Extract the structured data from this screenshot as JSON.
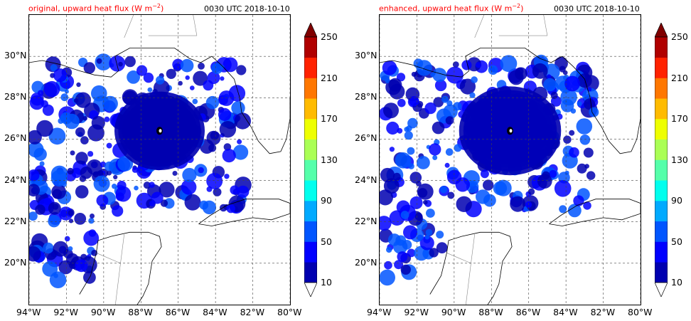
{
  "panels": [
    {
      "id": "left",
      "title": "original, upward heat flux (W m",
      "title_sup": "−2",
      "title_close": ")",
      "time": "0030 UTC 2018-10-10",
      "seed": 7
    },
    {
      "id": "right",
      "title": "enhanced, upward heat flux (W m",
      "title_sup": "−2",
      "title_close": ")",
      "time": "0030 UTC 2018-10-10",
      "seed": 13
    }
  ],
  "map": {
    "lon_range": [
      -94,
      -80
    ],
    "lat_range": [
      18,
      32
    ],
    "lon_ticks": [
      -94,
      -92,
      -90,
      -88,
      -86,
      -84,
      -82,
      -80
    ],
    "lon_labels": [
      "94°W",
      "92°W",
      "90°W",
      "88°W",
      "86°W",
      "84°W",
      "82°W",
      "80°W"
    ],
    "lat_ticks": [
      20,
      22,
      24,
      26,
      28,
      30
    ],
    "lat_labels": [
      "20°N",
      "22°N",
      "24°N",
      "26°N",
      "28°N",
      "30°N"
    ],
    "gridlines": true,
    "storm_center": {
      "lon": -87.0,
      "lat": 26.4
    }
  },
  "colorbar": {
    "levels": [
      10,
      30,
      50,
      70,
      90,
      110,
      130,
      150,
      170,
      190,
      210,
      230,
      250
    ],
    "labels": [
      "10",
      "50",
      "90",
      "130",
      "170",
      "210",
      "250"
    ],
    "colors": [
      "#0000b0",
      "#0000ff",
      "#0055ff",
      "#00aaff",
      "#00ffee",
      "#55ffaa",
      "#aaff55",
      "#eeff00",
      "#ffbb00",
      "#ff7700",
      "#ff2200",
      "#b00000"
    ],
    "extend": "both",
    "over_color": "#800000",
    "under_color": "#ffffff"
  }
}
